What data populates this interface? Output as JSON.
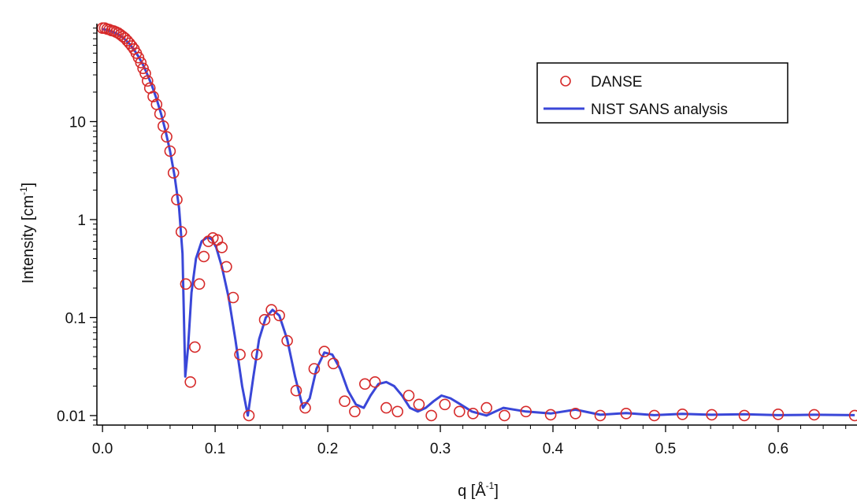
{
  "chart_data": {
    "type": "scatter",
    "xlabel": {
      "main": "q [",
      "unit": "Å",
      "sup": "-1",
      "close": "]"
    },
    "ylabel": {
      "main": "Intensity [cm",
      "sup": "-1",
      "close": "]"
    },
    "xlim": [
      -0.005,
      0.67
    ],
    "ylim": [
      0.008,
      100
    ],
    "yscale": "log",
    "grid": false,
    "legend_position": "top-right",
    "x_ticks": [
      {
        "value": 0.0,
        "label": "0.0"
      },
      {
        "value": 0.1,
        "label": "0.1"
      },
      {
        "value": 0.2,
        "label": "0.2"
      },
      {
        "value": 0.3,
        "label": "0.3"
      },
      {
        "value": 0.4,
        "label": "0.4"
      },
      {
        "value": 0.5,
        "label": "0.5"
      },
      {
        "value": 0.6,
        "label": "0.6"
      }
    ],
    "y_ticks": [
      {
        "value": 0.01,
        "label": "0.01"
      },
      {
        "value": 0.1,
        "label": "0.1"
      },
      {
        "value": 1,
        "label": "1"
      },
      {
        "value": 10,
        "label": "10"
      }
    ],
    "series": [
      {
        "name": "DANSE",
        "kind": "markers",
        "marker": "open-circle",
        "color": "#d62a2a",
        "x": [
          0.0,
          0.002,
          0.004,
          0.006,
          0.008,
          0.01,
          0.012,
          0.014,
          0.016,
          0.018,
          0.02,
          0.022,
          0.024,
          0.026,
          0.028,
          0.03,
          0.032,
          0.034,
          0.036,
          0.038,
          0.04,
          0.042,
          0.045,
          0.048,
          0.051,
          0.054,
          0.057,
          0.06,
          0.063,
          0.066,
          0.07,
          0.074,
          0.078,
          0.082,
          0.086,
          0.09,
          0.094,
          0.098,
          0.102,
          0.106,
          0.11,
          0.116,
          0.122,
          0.13,
          0.137,
          0.144,
          0.15,
          0.157,
          0.164,
          0.172,
          0.18,
          0.188,
          0.197,
          0.205,
          0.215,
          0.224,
          0.233,
          0.242,
          0.252,
          0.262,
          0.272,
          0.281,
          0.292,
          0.304,
          0.317,
          0.329,
          0.341,
          0.357,
          0.376,
          0.398,
          0.42,
          0.442,
          0.465,
          0.49,
          0.515,
          0.541,
          0.57,
          0.6,
          0.632,
          0.668
        ],
        "y": [
          90,
          90,
          88,
          87,
          85,
          84,
          82,
          80,
          77,
          74,
          71,
          67,
          63,
          59,
          55,
          50,
          45,
          40,
          35,
          31,
          26,
          22,
          18,
          15,
          12,
          9,
          7,
          5,
          3,
          1.6,
          0.75,
          0.22,
          0.022,
          0.05,
          0.22,
          0.42,
          0.6,
          0.65,
          0.62,
          0.52,
          0.33,
          0.16,
          0.042,
          0.01,
          0.042,
          0.095,
          0.12,
          0.105,
          0.058,
          0.018,
          0.012,
          0.03,
          0.045,
          0.034,
          0.014,
          0.011,
          0.021,
          0.022,
          0.012,
          0.011,
          0.016,
          0.013,
          0.01,
          0.013,
          0.011,
          0.0105,
          0.012,
          0.01,
          0.011,
          0.0102,
          0.0105,
          0.01,
          0.0105,
          0.01,
          0.0103,
          0.0102,
          0.01,
          0.0103,
          0.0102,
          0.01
        ]
      },
      {
        "name": "NIST SANS analysis",
        "kind": "line",
        "color": "#3a47d8",
        "x": [
          0.0,
          0.004,
          0.008,
          0.012,
          0.016,
          0.02,
          0.024,
          0.028,
          0.032,
          0.036,
          0.04,
          0.044,
          0.048,
          0.052,
          0.056,
          0.06,
          0.064,
          0.068,
          0.071,
          0.0735,
          0.076,
          0.079,
          0.083,
          0.088,
          0.093,
          0.097,
          0.101,
          0.106,
          0.112,
          0.118,
          0.124,
          0.129,
          0.134,
          0.139,
          0.145,
          0.151,
          0.157,
          0.164,
          0.171,
          0.178,
          0.184,
          0.19,
          0.197,
          0.204,
          0.211,
          0.218,
          0.225,
          0.232,
          0.238,
          0.245,
          0.252,
          0.259,
          0.266,
          0.273,
          0.28,
          0.287,
          0.294,
          0.301,
          0.309,
          0.318,
          0.328,
          0.341,
          0.356,
          0.376,
          0.398,
          0.42,
          0.442,
          0.465,
          0.49,
          0.515,
          0.541,
          0.57,
          0.6,
          0.632,
          0.668
        ],
        "y": [
          88,
          86,
          83,
          80,
          75,
          69,
          62,
          54,
          46,
          38,
          30,
          23,
          17,
          12,
          8,
          5,
          2.8,
          1.3,
          0.45,
          0.025,
          0.05,
          0.18,
          0.4,
          0.6,
          0.66,
          0.63,
          0.52,
          0.33,
          0.16,
          0.06,
          0.02,
          0.01,
          0.025,
          0.06,
          0.1,
          0.12,
          0.105,
          0.06,
          0.025,
          0.012,
          0.015,
          0.03,
          0.044,
          0.042,
          0.03,
          0.018,
          0.013,
          0.012,
          0.016,
          0.021,
          0.022,
          0.02,
          0.016,
          0.012,
          0.011,
          0.012,
          0.014,
          0.016,
          0.015,
          0.013,
          0.011,
          0.01,
          0.012,
          0.011,
          0.0105,
          0.0115,
          0.0102,
          0.0106,
          0.0101,
          0.0104,
          0.0102,
          0.0103,
          0.0101,
          0.0102,
          0.0101
        ]
      }
    ]
  }
}
